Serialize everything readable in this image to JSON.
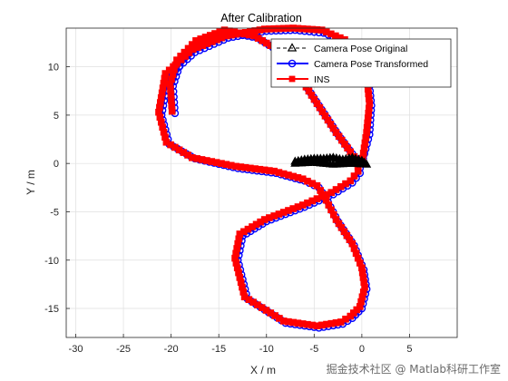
{
  "chart_data": {
    "type": "line",
    "title": "After Calibration",
    "xlabel": "X / m",
    "ylabel": "Y / m",
    "xlim": [
      -31,
      10
    ],
    "ylim": [
      -18,
      14
    ],
    "xticks": [
      -30,
      -25,
      -20,
      -15,
      -10,
      -5,
      0,
      5
    ],
    "yticks": [
      -15,
      -10,
      -5,
      0,
      5,
      10
    ],
    "grid": true,
    "legend_position": "top-right",
    "colors": {
      "camera_pose_original": "#000000",
      "camera_pose_transformed": "#0000ff",
      "ins": "#ff0000"
    },
    "series": [
      {
        "name": "Camera Pose Original",
        "marker": "triangle",
        "x": [
          -7,
          -6,
          -5,
          -4,
          -3,
          -2,
          -1,
          0,
          0.5,
          -1,
          -3,
          -5,
          -7
        ],
        "y": [
          0.2,
          0.4,
          0.5,
          0.5,
          0.6,
          0.4,
          0.6,
          0.3,
          -0.1,
          0.0,
          -0.1,
          0.1,
          0.0
        ]
      },
      {
        "name": "Camera Pose Transformed",
        "marker": "circle",
        "x": [
          0.0,
          0.8,
          1.0,
          0.7,
          0.0,
          -1.5,
          -4,
          -7,
          -10,
          -14,
          -17.5,
          -20.3,
          -21.0,
          -20.2,
          -17.5,
          -13,
          -9,
          -6,
          -4.5,
          -3.8,
          -2.5,
          -0.8,
          0.2,
          0.5,
          0.0,
          -1.0,
          -2.0,
          -4.5,
          -8,
          -12,
          -13.0,
          -12.5,
          -10,
          -6,
          -3,
          -1.0,
          -0.2,
          -0.2,
          -1.0,
          -2.5,
          -4.5,
          -6.5,
          -8.5,
          -11,
          -14,
          -17,
          -19.0,
          -19.8,
          -19.6
        ],
        "y": [
          0.0,
          3,
          6,
          9,
          11,
          12.5,
          13.5,
          13.8,
          13.7,
          13,
          11.5,
          9,
          5,
          2.0,
          0.5,
          -0.5,
          -1,
          -1.8,
          -2.5,
          -3.5,
          -6,
          -8.5,
          -11,
          -13,
          -15,
          -16,
          -16.6,
          -17.0,
          -16.5,
          -14,
          -10,
          -7.5,
          -6,
          -4.5,
          -3.2,
          -2.0,
          -1.0,
          0.0,
          1.0,
          3,
          6,
          9,
          11.5,
          13.0,
          13.6,
          12.5,
          10.5,
          8,
          5.2
        ]
      },
      {
        "name": "INS",
        "marker": "square",
        "x": [
          0.0,
          0.5,
          0.8,
          0.5,
          -0.3,
          -1.8,
          -4.2,
          -7.2,
          -10.2,
          -14.2,
          -17.7,
          -20.6,
          -21.3,
          -20.5,
          -17.8,
          -13.2,
          -9.2,
          -6.2,
          -4.7,
          -4.0,
          -2.7,
          -1.0,
          0.0,
          0.3,
          -0.2,
          -1.2,
          -2.2,
          -4.7,
          -8.2,
          -12.3,
          -13.3,
          -12.8,
          -10.2,
          -6.2,
          -3.2,
          -1.2,
          -0.4,
          -0.4,
          -1.2,
          -2.7,
          -4.7,
          -6.7,
          -8.7,
          -11.3,
          -14.4,
          -17.4,
          -19.4,
          -20.1,
          -19.9
        ],
        "y": [
          0.0,
          3.2,
          6.2,
          9.2,
          11.3,
          12.8,
          13.8,
          14.0,
          13.9,
          13.2,
          11.8,
          9.3,
          5.3,
          2.2,
          0.6,
          -0.3,
          -0.8,
          -1.6,
          -2.3,
          -3.3,
          -5.8,
          -8.3,
          -10.8,
          -12.8,
          -14.8,
          -15.8,
          -16.4,
          -16.8,
          -16.3,
          -13.8,
          -9.8,
          -7.3,
          -5.8,
          -4.3,
          -3.0,
          -1.8,
          -0.8,
          0.2,
          1.2,
          3.2,
          6.2,
          9.2,
          11.7,
          13.2,
          13.8,
          12.7,
          10.7,
          8.2,
          5.4
        ]
      }
    ]
  },
  "watermark": "掘金技术社区 @ Matlab科研工作室"
}
